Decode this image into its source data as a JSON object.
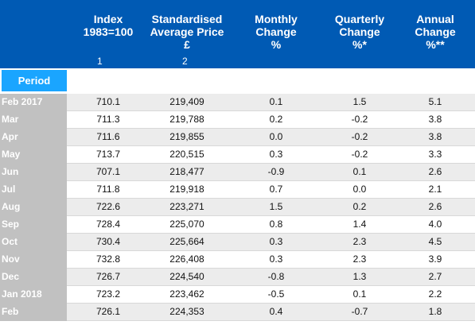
{
  "header": {
    "index": {
      "line1": "Index",
      "line2": "1983=100",
      "line3": "",
      "num": "1"
    },
    "price": {
      "line1": "Standardised",
      "line2": "Average Price",
      "line3": "£",
      "num": "2"
    },
    "monthly": {
      "line1": "Monthly",
      "line2": "Change",
      "line3": "%"
    },
    "quarterly": {
      "line1": "Quarterly",
      "line2": "Change",
      "line3": "%*"
    },
    "annual": {
      "line1": "Annual",
      "line2": "Change",
      "line3": "%**"
    }
  },
  "period_label": "Period",
  "rows": [
    {
      "period": "Feb 2017",
      "index": "710.1",
      "price": "219,409",
      "monthly": "0.1",
      "quarterly": "1.5",
      "annual": "5.1"
    },
    {
      "period": "Mar",
      "index": "711.3",
      "price": "219,788",
      "monthly": "0.2",
      "quarterly": "-0.2",
      "annual": "3.8"
    },
    {
      "period": "Apr",
      "index": "711.6",
      "price": "219,855",
      "monthly": "0.0",
      "quarterly": "-0.2",
      "annual": "3.8"
    },
    {
      "period": "May",
      "index": "713.7",
      "price": "220,515",
      "monthly": "0.3",
      "quarterly": "-0.2",
      "annual": "3.3"
    },
    {
      "period": "Jun",
      "index": "707.1",
      "price": "218,477",
      "monthly": "-0.9",
      "quarterly": "0.1",
      "annual": "2.6"
    },
    {
      "period": "Jul",
      "index": "711.8",
      "price": "219,918",
      "monthly": "0.7",
      "quarterly": "0.0",
      "annual": "2.1"
    },
    {
      "period": "Aug",
      "index": "722.6",
      "price": "223,271",
      "monthly": "1.5",
      "quarterly": "0.2",
      "annual": "2.6"
    },
    {
      "period": "Sep",
      "index": "728.4",
      "price": "225,070",
      "monthly": "0.8",
      "quarterly": "1.4",
      "annual": "4.0"
    },
    {
      "period": "Oct",
      "index": "730.4",
      "price": "225,664",
      "monthly": "0.3",
      "quarterly": "2.3",
      "annual": "4.5"
    },
    {
      "period": "Nov",
      "index": "732.8",
      "price": "226,408",
      "monthly": "0.3",
      "quarterly": "2.3",
      "annual": "3.9"
    },
    {
      "period": "Dec",
      "index": "726.7",
      "price": "224,540",
      "monthly": "-0.8",
      "quarterly": "1.3",
      "annual": "2.7"
    },
    {
      "period": "Jan 2018",
      "index": "723.2",
      "price": "223,462",
      "monthly": "-0.5",
      "quarterly": "0.1",
      "annual": "2.2"
    },
    {
      "period": "Feb",
      "index": "726.1",
      "price": "224,353",
      "monthly": "0.4",
      "quarterly": "-0.7",
      "annual": "1.8"
    }
  ],
  "colors": {
    "header_bg": "#005ab4",
    "period_label_bg": "#1aa5ff",
    "period_col_bg": "#c1c1c1",
    "row_shade": "#ececec"
  }
}
